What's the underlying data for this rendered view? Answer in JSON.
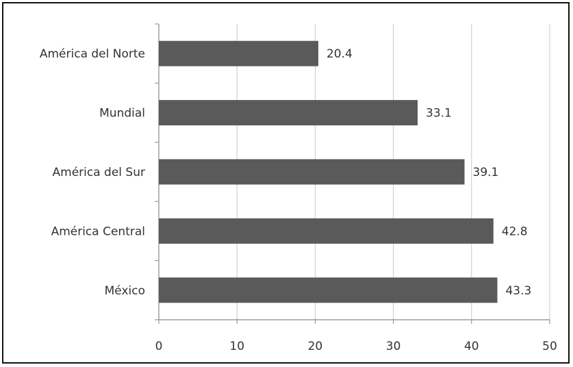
{
  "chart_data": {
    "type": "bar",
    "orientation": "horizontal",
    "categories": [
      "América del Norte",
      "Mundial",
      "América del Sur",
      "América Central",
      "México"
    ],
    "values": [
      20.4,
      33.1,
      39.1,
      42.8,
      43.3
    ],
    "data_labels": [
      "20.4",
      "33.1",
      "39.1",
      "42.8",
      "43.3"
    ],
    "xlim": [
      0,
      50
    ],
    "x_ticks": [
      0,
      10,
      20,
      30,
      40,
      50
    ],
    "x_tick_labels": [
      "0",
      "10",
      "20",
      "30",
      "40",
      "50"
    ],
    "title": "",
    "xlabel": "",
    "ylabel": "",
    "grid": "vertical",
    "legend": "none",
    "colors": {
      "bar": "#5a5a5a",
      "grid": "#c8c8c8",
      "axis": "#888888",
      "text": "#333333",
      "frame": "#111111"
    }
  }
}
